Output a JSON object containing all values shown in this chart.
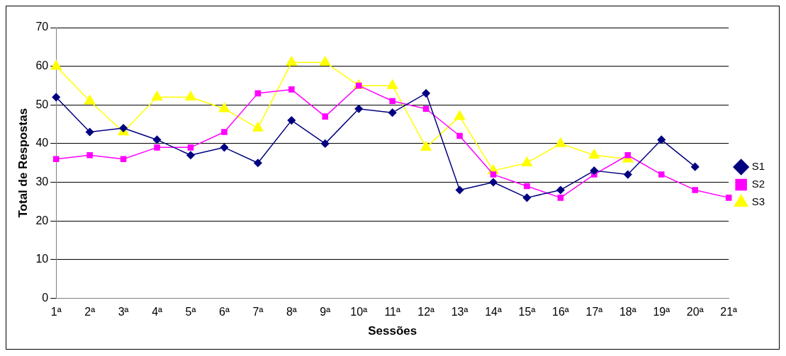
{
  "chart_data": {
    "type": "line",
    "xlabel": "Sessões",
    "ylabel": "Total de Respostas",
    "categories": [
      "1ª",
      "2ª",
      "3ª",
      "4ª",
      "5ª",
      "6ª",
      "7ª",
      "8ª",
      "9ª",
      "10ª",
      "11ª",
      "12ª",
      "13ª",
      "14ª",
      "15ª",
      "16ª",
      "17ª",
      "18ª",
      "19ª",
      "20ª",
      "21ª"
    ],
    "series": [
      {
        "name": "S1",
        "color": "#000080",
        "marker": "diamond",
        "values": [
          52,
          43,
          44,
          41,
          37,
          39,
          35,
          46,
          40,
          49,
          48,
          53,
          28,
          30,
          26,
          28,
          33,
          32,
          41,
          34,
          null
        ]
      },
      {
        "name": "S2",
        "color": "#ff00ff",
        "marker": "square",
        "values": [
          36,
          37,
          36,
          39,
          39,
          43,
          53,
          54,
          47,
          55,
          51,
          49,
          42,
          32,
          29,
          26,
          32,
          37,
          32,
          28,
          26
        ]
      },
      {
        "name": "S3",
        "color": "#ffff00",
        "marker": "triangle",
        "values": [
          60,
          51,
          43,
          52,
          52,
          49,
          44,
          61,
          61,
          55,
          55,
          39,
          47,
          33,
          35,
          40,
          37,
          36,
          null,
          null,
          null
        ]
      }
    ],
    "ylim": [
      0,
      70
    ],
    "yticks": [
      0,
      10,
      20,
      30,
      40,
      50,
      60,
      70
    ],
    "grid": "y",
    "legend": "right",
    "line_style": "solid"
  }
}
